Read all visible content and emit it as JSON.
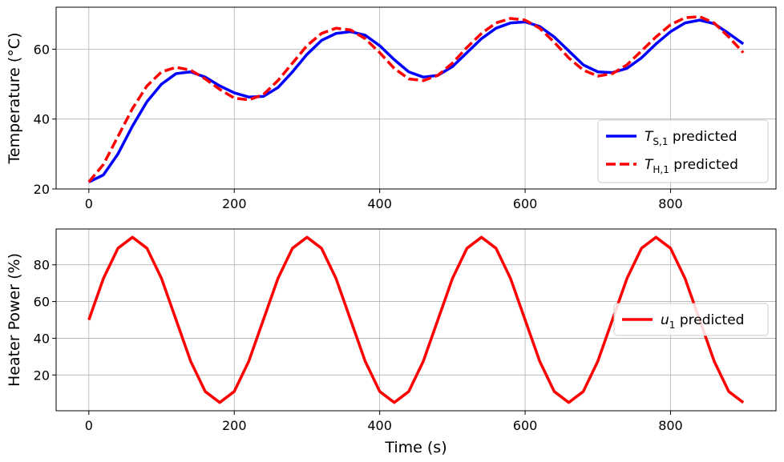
{
  "chart_data": [
    {
      "type": "line",
      "title": "",
      "xlabel": "",
      "ylabel": "Temperature (°C)",
      "xlim": [
        -45,
        945
      ],
      "ylim": [
        20,
        72
      ],
      "xticks": [
        0,
        200,
        400,
        600,
        800
      ],
      "yticks": [
        20,
        40,
        60
      ],
      "grid": true,
      "legend_position": "lower-right",
      "series": [
        {
          "name": "predicted",
          "name_math": "T_{S,1}",
          "math_base": "T",
          "math_sub": "S,1",
          "color": "#0000ff",
          "style": "solid",
          "x": [
            0,
            20,
            40,
            60,
            80,
            100,
            120,
            140,
            160,
            180,
            200,
            220,
            240,
            260,
            280,
            300,
            320,
            340,
            360,
            380,
            400,
            420,
            440,
            460,
            480,
            500,
            520,
            540,
            560,
            580,
            600,
            620,
            640,
            660,
            680,
            700,
            720,
            740,
            760,
            780,
            800,
            820,
            840,
            860,
            880,
            900
          ],
          "y": [
            22,
            24,
            30,
            38,
            45,
            50,
            53,
            53.5,
            52,
            49.5,
            47.5,
            46.3,
            46.5,
            49,
            53.5,
            58.5,
            62.5,
            64.5,
            65,
            64,
            61,
            57,
            53.5,
            52,
            52.5,
            55,
            59,
            63,
            66,
            67.5,
            67.8,
            66.5,
            63.5,
            59.5,
            55.5,
            53.5,
            53.3,
            54.5,
            57.5,
            61.5,
            65,
            67.5,
            68.3,
            67.3,
            64.5,
            61.5
          ]
        },
        {
          "name": "predicted",
          "name_math": "T_{H,1}",
          "math_base": "T",
          "math_sub": "H,1",
          "color": "#ff0000",
          "style": "dashed",
          "x": [
            0,
            20,
            40,
            60,
            80,
            100,
            120,
            140,
            160,
            180,
            200,
            220,
            240,
            260,
            280,
            300,
            320,
            340,
            360,
            380,
            400,
            420,
            440,
            460,
            480,
            500,
            520,
            540,
            560,
            580,
            600,
            620,
            640,
            660,
            680,
            700,
            720,
            740,
            760,
            780,
            800,
            820,
            840,
            860,
            880,
            900
          ],
          "y": [
            22,
            27,
            35,
            43,
            49.5,
            53.5,
            54.8,
            54,
            51.5,
            48.5,
            46,
            45.5,
            47,
            51,
            56,
            61,
            64.5,
            66,
            65.5,
            63,
            59,
            54.5,
            51.5,
            51,
            52.5,
            56,
            60.5,
            64.5,
            67.5,
            68.8,
            68.3,
            66,
            62,
            57.5,
            54,
            52.3,
            53,
            55.5,
            59.5,
            63.5,
            67,
            69,
            69.3,
            67.5,
            63.5,
            59
          ]
        }
      ]
    },
    {
      "type": "line",
      "title": "",
      "xlabel": "Time (s)",
      "ylabel": "Heater Power (%)",
      "xlim": [
        -45,
        945
      ],
      "ylim": [
        0.5,
        99.5
      ],
      "xticks": [
        0,
        200,
        400,
        600,
        800
      ],
      "yticks": [
        20,
        40,
        60,
        80
      ],
      "grid": true,
      "legend_position": "center-right",
      "series": [
        {
          "name": "predicted",
          "name_math": "u_{1}",
          "math_base": "u",
          "math_sub": "1",
          "color": "#ff0000",
          "style": "solid",
          "x": [
            0,
            20,
            40,
            60,
            80,
            100,
            120,
            140,
            160,
            180,
            200,
            220,
            240,
            260,
            280,
            300,
            320,
            340,
            360,
            380,
            400,
            420,
            440,
            460,
            480,
            500,
            520,
            540,
            560,
            580,
            600,
            620,
            640,
            660,
            680,
            700,
            720,
            740,
            760,
            780,
            800,
            820,
            840,
            860,
            880,
            900
          ],
          "y": [
            50,
            72.5,
            89,
            95,
            89,
            72.5,
            50,
            27.5,
            11,
            5,
            11,
            27.5,
            50,
            72.5,
            89,
            95,
            89,
            72.5,
            50,
            27.5,
            11,
            5,
            11,
            27.5,
            50,
            72.5,
            89,
            95,
            89,
            72.5,
            50,
            27.5,
            11,
            5,
            11,
            27.5,
            50,
            72.5,
            89,
            95,
            89,
            72.5,
            50,
            27.5,
            11,
            5
          ]
        }
      ]
    }
  ]
}
